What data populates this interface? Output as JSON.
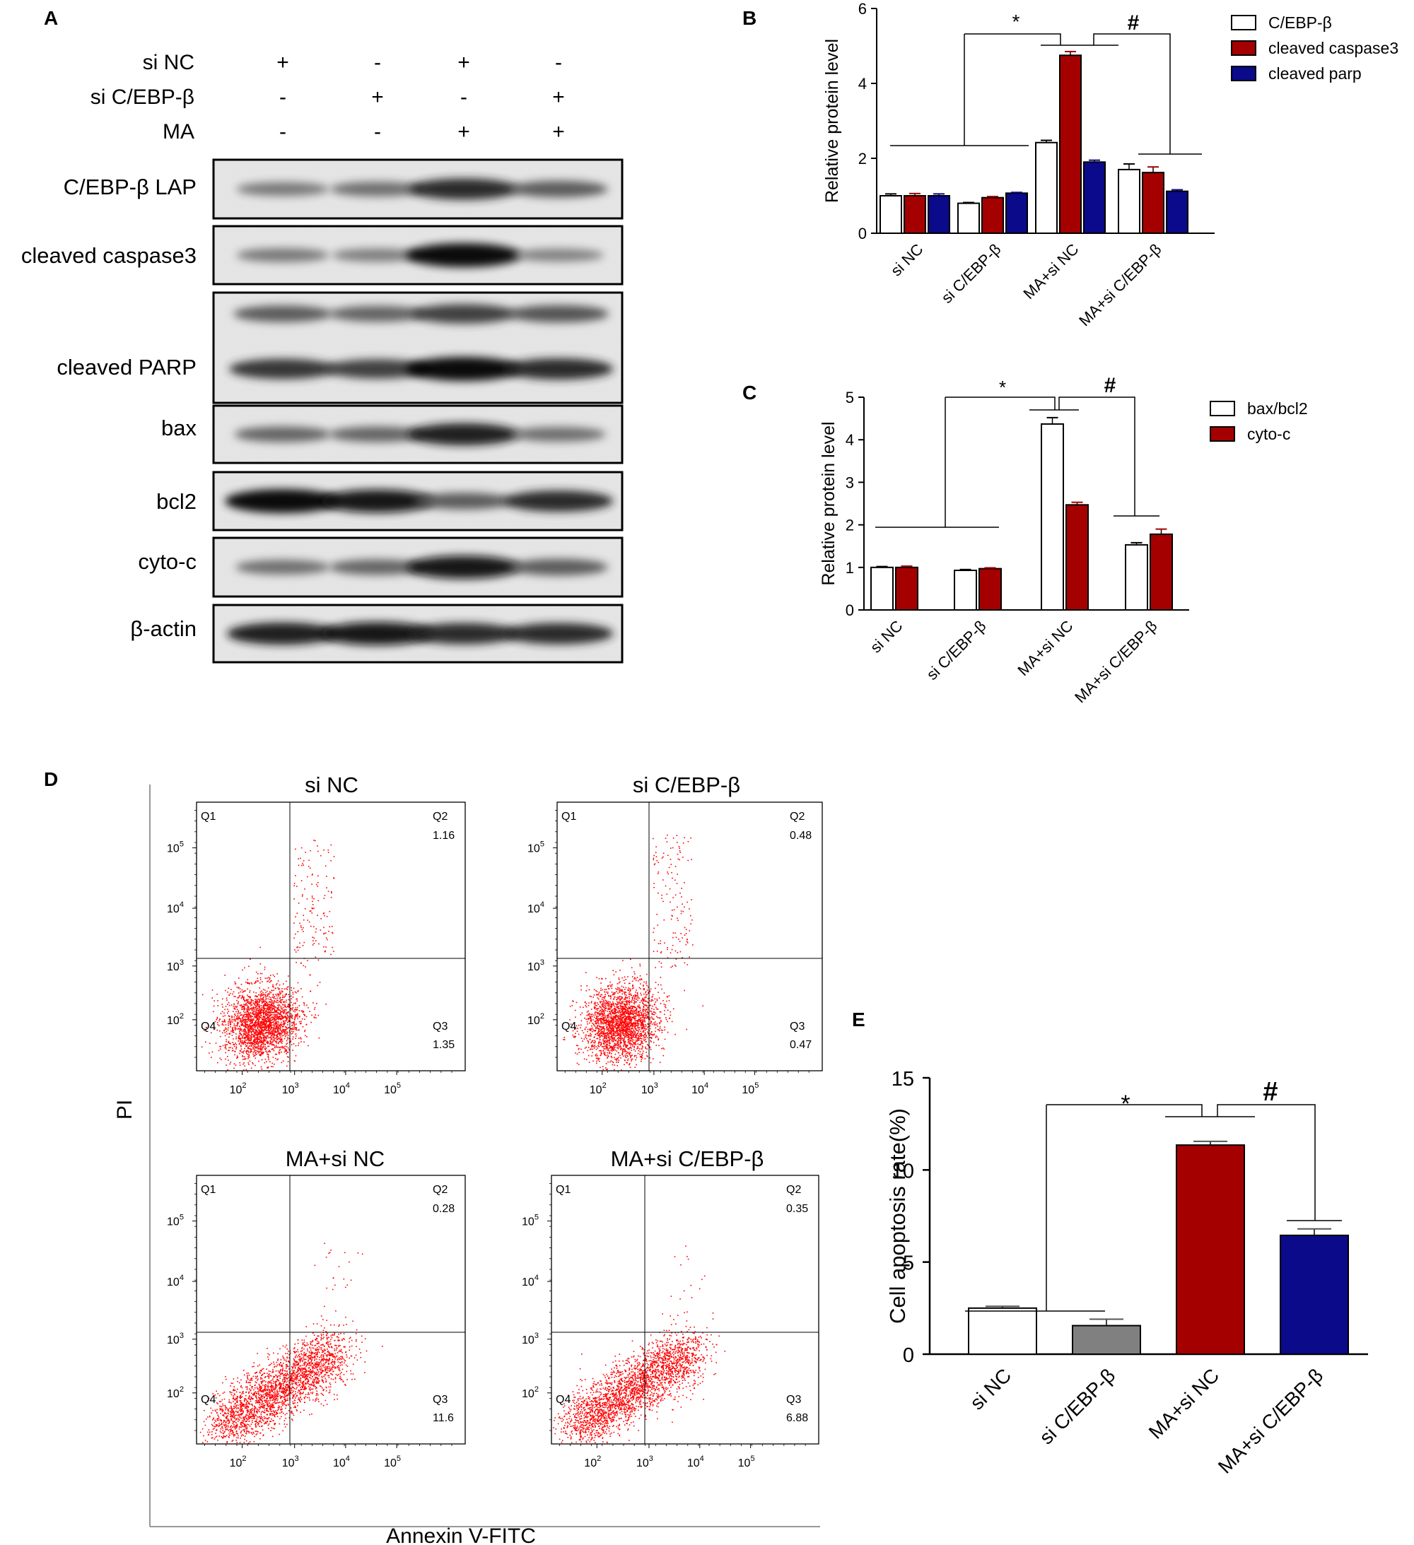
{
  "panel_letters": {
    "a": "A",
    "b": "B",
    "c": "C",
    "d": "D",
    "e": "E"
  },
  "colors": {
    "series_white": "#ffffff",
    "series_red": "#a50000",
    "series_blue": "#0a0a8a",
    "series_gray": "#808080",
    "dot_red": "#ff0000",
    "axis": "#000000"
  },
  "western_blot": {
    "conditions": [
      {
        "label": "si NC",
        "lanes": [
          "+",
          "-",
          "+",
          "-"
        ]
      },
      {
        "label": "si C/EBP-β",
        "lanes": [
          "-",
          "+",
          "-",
          "+"
        ]
      },
      {
        "label": "MA",
        "lanes": [
          "-",
          "-",
          "+",
          "+"
        ]
      }
    ],
    "blots": [
      {
        "label": "C/EBP-β LAP",
        "intensity": [
          0.45,
          0.5,
          0.85,
          0.6
        ]
      },
      {
        "label": "cleaved caspase3",
        "intensity": [
          0.45,
          0.42,
          1.0,
          0.4
        ]
      },
      {
        "label": "cleaved PARP",
        "intensity": [
          0.8,
          0.75,
          1.0,
          0.85
        ]
      },
      {
        "label": "bax",
        "intensity": [
          0.55,
          0.55,
          0.9,
          0.5
        ]
      },
      {
        "label": "bcl2",
        "intensity": [
          1.0,
          0.95,
          0.6,
          0.85
        ]
      },
      {
        "label": "cyto-c",
        "intensity": [
          0.5,
          0.55,
          0.95,
          0.6
        ]
      },
      {
        "label": "β-actin",
        "intensity": [
          0.9,
          0.95,
          0.85,
          0.85
        ]
      }
    ]
  },
  "chart_data": [
    {
      "panel": "B",
      "type": "bar",
      "ylabel": "Relative protein level",
      "ylim": [
        0,
        6
      ],
      "yticks": [
        "0",
        "2",
        "4",
        "6"
      ],
      "categories": [
        "si NC",
        "si C/EBP-β",
        "MA+si NC",
        "MA+si C/EBP-β"
      ],
      "series": [
        {
          "name": "C/EBP-β",
          "color": "#ffffff",
          "values": [
            1.0,
            0.8,
            2.42,
            1.7
          ],
          "errors": [
            0.05,
            0.02,
            0.06,
            0.15
          ]
        },
        {
          "name": "cleaved caspase3",
          "color": "#a50000",
          "values": [
            1.0,
            0.95,
            4.75,
            1.62
          ],
          "errors": [
            0.06,
            0.03,
            0.1,
            0.15
          ]
        },
        {
          "name": "cleaved parp",
          "color": "#0a0a8a",
          "values": [
            1.0,
            1.07,
            1.9,
            1.12
          ],
          "errors": [
            0.05,
            0.02,
            0.05,
            0.04
          ]
        }
      ],
      "significance": [
        "*",
        "#"
      ],
      "legend": "right"
    },
    {
      "panel": "C",
      "type": "bar",
      "ylabel": "Relative protein level",
      "ylim": [
        0,
        5
      ],
      "yticks": [
        "0",
        "1",
        "2",
        "3",
        "4",
        "5"
      ],
      "categories": [
        "si NC",
        "si C/EBP-β",
        "MA+si NC",
        "MA+si C/EBP-β"
      ],
      "series": [
        {
          "name": "bax/bcl2",
          "color": "#ffffff",
          "values": [
            1.0,
            0.93,
            4.37,
            1.53
          ],
          "errors": [
            0.02,
            0.02,
            0.15,
            0.05
          ]
        },
        {
          "name": "cyto-c",
          "color": "#a50000",
          "values": [
            1.0,
            0.97,
            2.47,
            1.78
          ],
          "errors": [
            0.03,
            0.02,
            0.06,
            0.12
          ]
        }
      ],
      "significance": [
        "*",
        "#"
      ],
      "legend": "right"
    },
    {
      "panel": "E",
      "type": "bar",
      "ylabel": "Cell apoptosis rate(%)",
      "ylim": [
        0,
        15
      ],
      "yticks": [
        "0",
        "5",
        "10",
        "15"
      ],
      "categories": [
        "si NC",
        "si C/EBP-β",
        "MA+si NC",
        "MA+si C/EBP-β"
      ],
      "values": [
        2.5,
        1.55,
        11.35,
        6.45
      ],
      "errors": [
        0.1,
        0.35,
        0.2,
        0.35
      ],
      "colors": [
        "#ffffff",
        "#808080",
        "#a50000",
        "#0a0a8a"
      ],
      "significance": [
        "*",
        "#"
      ]
    }
  ],
  "flow": {
    "ylabel": "PI",
    "xlabel": "Annexin V-FITC",
    "plots": [
      {
        "title": "si NC",
        "q2": "1.16",
        "q3": "1.35"
      },
      {
        "title": "si C/EBP-β",
        "q2": "0.48",
        "q3": "0.47"
      },
      {
        "title": "MA+si NC",
        "q2": "0.28",
        "q3": "11.6"
      },
      {
        "title": "MA+si C/EBP-β",
        "q2": "0.35",
        "q3": "6.88"
      }
    ],
    "quadrant_labels": [
      "Q1",
      "Q2",
      "Q3",
      "Q4"
    ],
    "x_tick_exponents": [
      "2",
      "3",
      "4",
      "5"
    ],
    "y_tick_exponents": [
      "2",
      "3",
      "4",
      "5"
    ],
    "tick_base": "10"
  }
}
